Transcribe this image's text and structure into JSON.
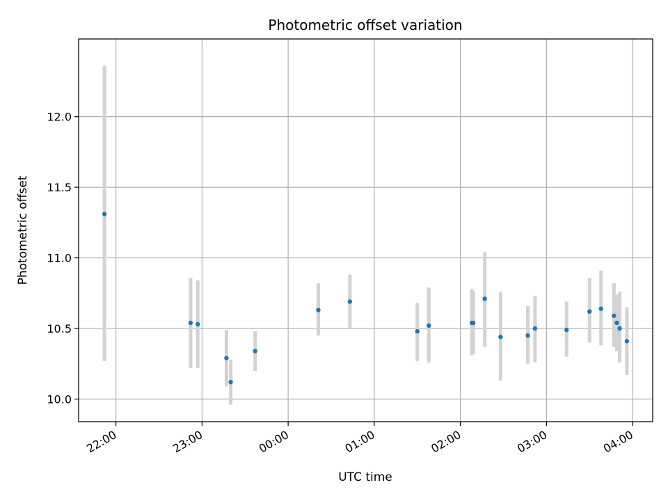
{
  "chart_data": {
    "type": "scatter",
    "title": "Photometric offset variation",
    "xlabel": "UTC time",
    "ylabel": "Photometric offset",
    "xlim": [
      "21:34",
      "04:14"
    ],
    "ylim": [
      9.84,
      12.55
    ],
    "x_ticks": [
      "22:00",
      "23:00",
      "00:00",
      "01:00",
      "02:00",
      "03:00",
      "04:00"
    ],
    "y_ticks": [
      "10.0",
      "10.5",
      "11.0",
      "11.5",
      "12.0"
    ],
    "grid": true,
    "colors": {
      "point": "#1f77b4",
      "errorbar": "#d3d3d3",
      "grid": "#b0b0b0"
    },
    "series": [
      {
        "points": [
          {
            "x": "21:52",
            "y": 11.31,
            "low": 10.27,
            "high": 12.36
          },
          {
            "x": "22:52",
            "y": 10.54,
            "low": 10.22,
            "high": 10.86
          },
          {
            "x": "22:57",
            "y": 10.53,
            "low": 10.22,
            "high": 10.84
          },
          {
            "x": "23:17",
            "y": 10.29,
            "low": 10.09,
            "high": 10.49
          },
          {
            "x": "23:20",
            "y": 10.12,
            "low": 9.96,
            "high": 10.28
          },
          {
            "x": "23:37",
            "y": 10.34,
            "low": 10.2,
            "high": 10.48
          },
          {
            "x": "00:21",
            "y": 10.63,
            "low": 10.45,
            "high": 10.82
          },
          {
            "x": "00:43",
            "y": 10.69,
            "low": 10.5,
            "high": 10.88
          },
          {
            "x": "01:30",
            "y": 10.48,
            "low": 10.27,
            "high": 10.68
          },
          {
            "x": "01:38",
            "y": 10.52,
            "low": 10.26,
            "high": 10.79
          },
          {
            "x": "02:08",
            "y": 10.54,
            "low": 10.31,
            "high": 10.78
          },
          {
            "x": "02:09",
            "y": 10.54,
            "low": 10.32,
            "high": 10.76
          },
          {
            "x": "02:17",
            "y": 10.71,
            "low": 10.37,
            "high": 11.04
          },
          {
            "x": "02:28",
            "y": 10.44,
            "low": 10.13,
            "high": 10.76
          },
          {
            "x": "02:47",
            "y": 10.45,
            "low": 10.25,
            "high": 10.66
          },
          {
            "x": "02:52",
            "y": 10.5,
            "low": 10.26,
            "high": 10.73
          },
          {
            "x": "03:14",
            "y": 10.49,
            "low": 10.3,
            "high": 10.69
          },
          {
            "x": "03:30",
            "y": 10.62,
            "low": 10.4,
            "high": 10.86
          },
          {
            "x": "03:38",
            "y": 10.64,
            "low": 10.38,
            "high": 10.91
          },
          {
            "x": "03:47",
            "y": 10.59,
            "low": 10.37,
            "high": 10.82
          },
          {
            "x": "03:49",
            "y": 10.54,
            "low": 10.34,
            "high": 10.74
          },
          {
            "x": "03:51",
            "y": 10.5,
            "low": 10.26,
            "high": 10.76
          },
          {
            "x": "03:56",
            "y": 10.41,
            "low": 10.17,
            "high": 10.65
          }
        ]
      }
    ]
  }
}
